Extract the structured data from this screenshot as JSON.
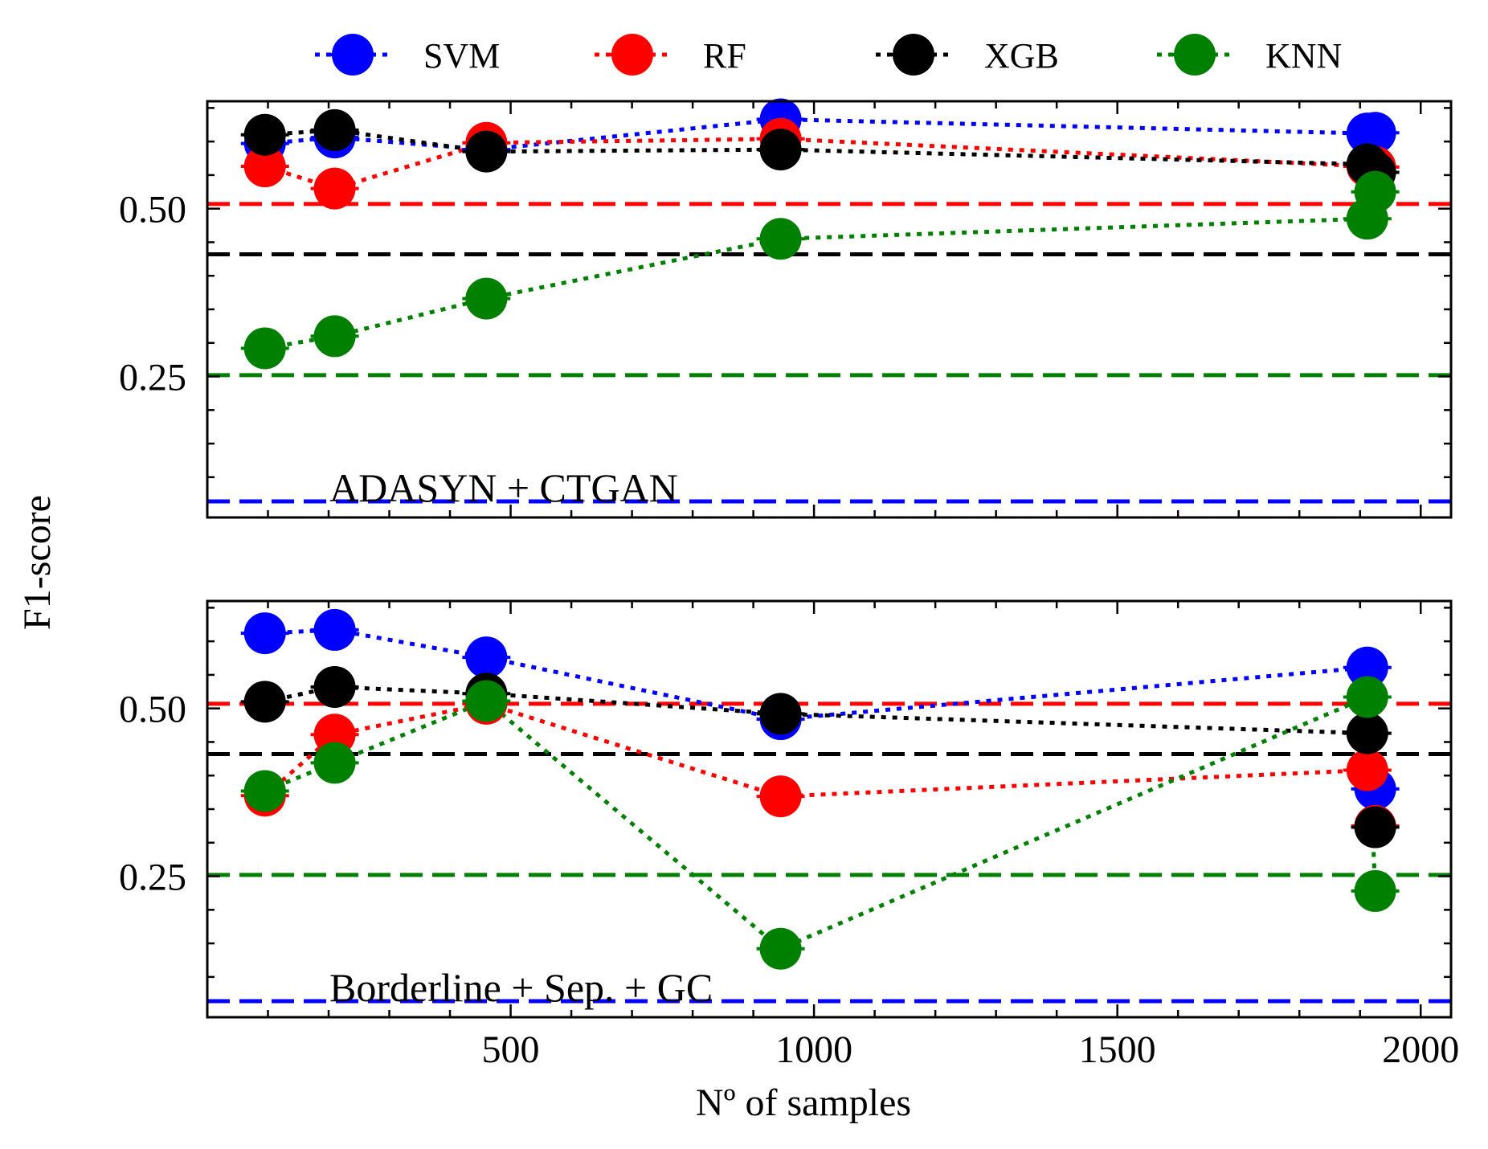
{
  "figure": {
    "ylabel": "F1-score",
    "xlabel": "Nº of samples"
  },
  "legend": [
    {
      "name": "SVM",
      "color": "#0000ff"
    },
    {
      "name": "RF",
      "color": "#ff0000"
    },
    {
      "name": "XGB",
      "color": "#000000"
    },
    {
      "name": "KNN",
      "color": "#008000"
    }
  ],
  "chart_data": [
    {
      "type": "line",
      "annotation": "ADASYN + CTGAN",
      "xlim": [
        0,
        2050
      ],
      "ylim": [
        0.04,
        0.66
      ],
      "xticks": [
        500,
        1000,
        1500,
        2000
      ],
      "yticks": [
        0.25,
        0.5
      ],
      "ytick_labels": [
        "0.25",
        "0.50"
      ],
      "baselines": [
        {
          "y": 0.507,
          "color": "#ff0000"
        },
        {
          "y": 0.432,
          "color": "#000000"
        },
        {
          "y": 0.252,
          "color": "#008000"
        },
        {
          "y": 0.064,
          "color": "#0000ff"
        }
      ],
      "series": [
        {
          "name": "SVM",
          "color": "#0000ff",
          "x": [
            95,
            210,
            460,
            945,
            1912,
            1925
          ],
          "y": [
            0.597,
            0.606,
            0.588,
            0.633,
            0.612,
            0.613
          ]
        },
        {
          "name": "RF",
          "color": "#ff0000",
          "x": [
            95,
            210,
            460,
            945,
            1912,
            1925
          ],
          "y": [
            0.563,
            0.53,
            0.598,
            0.604,
            0.563,
            0.562
          ]
        },
        {
          "name": "XGB",
          "color": "#000000",
          "x": [
            95,
            210,
            460,
            945,
            1912,
            1925
          ],
          "y": [
            0.61,
            0.617,
            0.585,
            0.588,
            0.566,
            0.554
          ]
        },
        {
          "name": "KNN",
          "color": "#008000",
          "x": [
            95,
            210,
            460,
            945,
            1912,
            1925
          ],
          "y": [
            0.292,
            0.31,
            0.366,
            0.455,
            0.485,
            0.525
          ]
        }
      ]
    },
    {
      "type": "line",
      "annotation": "Borderline + Sep. + GC",
      "xlim": [
        0,
        2050
      ],
      "ylim": [
        0.04,
        0.66
      ],
      "xticks": [
        500,
        1000,
        1500,
        2000
      ],
      "xtick_labels": [
        "500",
        "1000",
        "1500",
        "2000"
      ],
      "yticks": [
        0.25,
        0.5
      ],
      "ytick_labels": [
        "0.25",
        "0.50"
      ],
      "baselines": [
        {
          "y": 0.507,
          "color": "#ff0000"
        },
        {
          "y": 0.432,
          "color": "#000000"
        },
        {
          "y": 0.252,
          "color": "#008000"
        },
        {
          "y": 0.064,
          "color": "#0000ff"
        }
      ],
      "series": [
        {
          "name": "SVM",
          "color": "#0000ff",
          "x": [
            95,
            210,
            460,
            945,
            1912,
            1925
          ],
          "y": [
            0.612,
            0.617,
            0.576,
            0.484,
            0.561,
            0.38
          ]
        },
        {
          "name": "RF",
          "color": "#ff0000",
          "x": [
            95,
            210,
            460,
            945,
            1912,
            1925
          ],
          "y": [
            0.37,
            0.461,
            0.507,
            0.369,
            0.408,
            0.325
          ]
        },
        {
          "name": "XGB",
          "color": "#000000",
          "x": [
            95,
            210,
            460,
            945,
            1912,
            1925
          ],
          "y": [
            0.51,
            0.532,
            0.522,
            0.492,
            0.463,
            0.323
          ]
        },
        {
          "name": "KNN",
          "color": "#008000",
          "x": [
            95,
            210,
            460,
            945,
            1912,
            1925
          ],
          "y": [
            0.377,
            0.419,
            0.511,
            0.142,
            0.517,
            0.228
          ]
        }
      ]
    }
  ]
}
